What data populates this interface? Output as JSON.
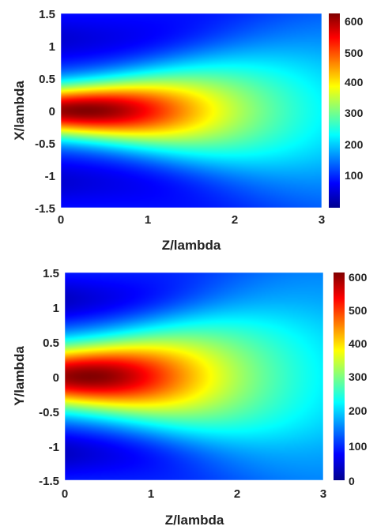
{
  "chart_data": [
    {
      "type": "heatmap",
      "title": "",
      "xlabel": "Z/lambda",
      "ylabel": "X/lambda",
      "xlim": [
        0,
        3
      ],
      "ylim": [
        -1.5,
        1.5
      ],
      "x_ticks": [
        "0",
        "1",
        "2",
        "3"
      ],
      "y_ticks": [
        "1.5",
        "1",
        "0.5",
        "0",
        "-0.5",
        "-1",
        "-1.5"
      ],
      "colorbar": {
        "range": [
          0,
          620
        ],
        "ticks": [
          "600",
          "500",
          "400",
          "300",
          "200",
          "100"
        ],
        "colormap": "jet"
      },
      "field": {
        "peak_value": 620,
        "peak_z": 0.3,
        "peak_x": 0,
        "background_value": 95,
        "waist": 0.28,
        "rayleigh_range": 1.6,
        "sidelobe_value": 50
      }
    },
    {
      "type": "heatmap",
      "title": "",
      "xlabel": "Z/lambda",
      "ylabel": "Y/lambda",
      "xlim": [
        0,
        3
      ],
      "ylim": [
        -1.5,
        1.5
      ],
      "x_ticks": [
        "0",
        "1",
        "2",
        "3"
      ],
      "y_ticks": [
        "1.5",
        "1",
        "0.5",
        "0",
        "-0.5",
        "-1",
        "-1.5"
      ],
      "colorbar": {
        "range": [
          0,
          620
        ],
        "ticks": [
          "600",
          "500",
          "400",
          "300",
          "200",
          "100",
          "0"
        ],
        "colormap": "jet"
      },
      "field": {
        "peak_value": 620,
        "peak_z": 0.3,
        "peak_x": 0,
        "background_value": 110,
        "waist": 0.32,
        "rayleigh_range": 1.5,
        "sidelobe_value": 40
      }
    }
  ]
}
